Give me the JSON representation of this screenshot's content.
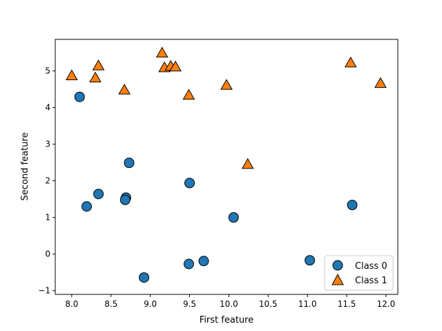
{
  "chart_data": {
    "type": "scatter",
    "xlabel": "First feature",
    "ylabel": "Second feature",
    "xlim": [
      7.79,
      12.15
    ],
    "ylim": [
      -1.1,
      5.86
    ],
    "xticks": [
      "8.0",
      "8.5",
      "9.0",
      "9.5",
      "10.0",
      "10.5",
      "11.0",
      "11.5",
      "12.0"
    ],
    "yticks": [
      "−1",
      "0",
      "1",
      "2",
      "3",
      "4",
      "5"
    ],
    "grid": false,
    "legend_position": "lower-right",
    "series": [
      {
        "name": "Class 0",
        "marker": "circle",
        "color": "#1f77b4",
        "points": [
          [
            8.1,
            4.29
          ],
          [
            8.19,
            1.3
          ],
          [
            8.34,
            1.64
          ],
          [
            8.69,
            1.54
          ],
          [
            8.68,
            1.48
          ],
          [
            8.73,
            2.49
          ],
          [
            8.92,
            -0.64
          ],
          [
            9.49,
            -0.27
          ],
          [
            9.5,
            1.94
          ],
          [
            9.68,
            -0.19
          ],
          [
            10.06,
            1.0
          ],
          [
            11.03,
            -0.17
          ],
          [
            11.57,
            1.34
          ]
        ]
      },
      {
        "name": "Class 1",
        "marker": "triangle",
        "color": "#ff7f0e",
        "points": [
          [
            8.0,
            4.87
          ],
          [
            8.3,
            4.81
          ],
          [
            8.34,
            5.14
          ],
          [
            8.67,
            4.48
          ],
          [
            9.15,
            5.49
          ],
          [
            9.18,
            5.09
          ],
          [
            9.26,
            5.13
          ],
          [
            9.32,
            5.11
          ],
          [
            9.49,
            4.34
          ],
          [
            9.97,
            4.61
          ],
          [
            10.24,
            2.45
          ],
          [
            11.55,
            5.22
          ],
          [
            11.93,
            4.66
          ]
        ]
      }
    ]
  }
}
